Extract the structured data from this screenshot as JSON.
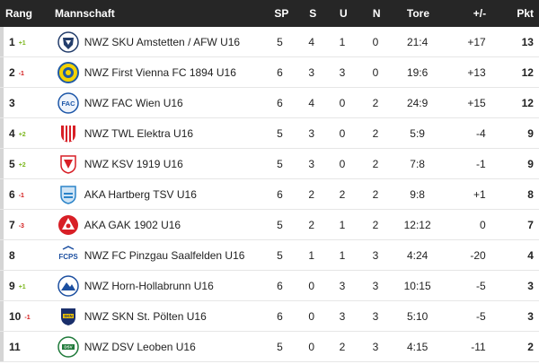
{
  "header": {
    "rang": "Rang",
    "mannschaft": "Mannschaft",
    "sp": "SP",
    "s": "S",
    "u": "U",
    "n": "N",
    "tore": "Tore",
    "diff": "+/-",
    "pkt": "Pkt"
  },
  "colors": {
    "up": "#7bb61c",
    "down": "#d21a1a",
    "header_bg": "#262626"
  },
  "rows": [
    {
      "rank": "1",
      "change": "+1",
      "dir": "up",
      "team": "NWZ SKU Amstetten / AFW U16",
      "logo": "sku-amstetten-logo",
      "sp": "5",
      "s": "4",
      "u": "1",
      "n": "0",
      "tore": "21:4",
      "diff": "+17",
      "pkt": "13"
    },
    {
      "rank": "2",
      "change": "-1",
      "dir": "down",
      "team": "NWZ First Vienna FC 1894 U16",
      "logo": "first-vienna-logo",
      "sp": "6",
      "s": "3",
      "u": "3",
      "n": "0",
      "tore": "19:6",
      "diff": "+13",
      "pkt": "12"
    },
    {
      "rank": "3",
      "change": "",
      "dir": "",
      "team": "NWZ FAC Wien U16",
      "logo": "fac-wien-logo",
      "sp": "6",
      "s": "4",
      "u": "0",
      "n": "2",
      "tore": "24:9",
      "diff": "+15",
      "pkt": "12"
    },
    {
      "rank": "4",
      "change": "+2",
      "dir": "up",
      "team": "NWZ TWL Elektra U16",
      "logo": "twl-elektra-logo",
      "sp": "5",
      "s": "3",
      "u": "0",
      "n": "2",
      "tore": "5:9",
      "diff": "-4",
      "pkt": "9"
    },
    {
      "rank": "5",
      "change": "+2",
      "dir": "up",
      "team": "NWZ KSV 1919 U16",
      "logo": "ksv-1919-logo",
      "sp": "5",
      "s": "3",
      "u": "0",
      "n": "2",
      "tore": "7:8",
      "diff": "-1",
      "pkt": "9"
    },
    {
      "rank": "6",
      "change": "-1",
      "dir": "down",
      "team": "AKA Hartberg TSV U16",
      "logo": "hartberg-logo",
      "sp": "6",
      "s": "2",
      "u": "2",
      "n": "2",
      "tore": "9:8",
      "diff": "+1",
      "pkt": "8"
    },
    {
      "rank": "7",
      "change": "-3",
      "dir": "down",
      "team": "AKA GAK 1902 U16",
      "logo": "gak-logo",
      "sp": "5",
      "s": "2",
      "u": "1",
      "n": "2",
      "tore": "12:12",
      "diff": "0",
      "pkt": "7"
    },
    {
      "rank": "8",
      "change": "",
      "dir": "",
      "team": "NWZ FC Pinzgau Saalfelden U16",
      "logo": "fcps-logo",
      "logo_text": "FCPS",
      "sp": "5",
      "s": "1",
      "u": "1",
      "n": "3",
      "tore": "4:24",
      "diff": "-20",
      "pkt": "4"
    },
    {
      "rank": "9",
      "change": "+1",
      "dir": "up",
      "team": "NWZ Horn-Hollabrunn U16",
      "logo": "horn-hollabrunn-logo",
      "sp": "6",
      "s": "0",
      "u": "3",
      "n": "3",
      "tore": "10:15",
      "diff": "-5",
      "pkt": "3"
    },
    {
      "rank": "10",
      "change": "-1",
      "dir": "down",
      "team": "NWZ SKN St. Pölten U16",
      "logo": "skn-st-poelten-logo",
      "sp": "6",
      "s": "0",
      "u": "3",
      "n": "3",
      "tore": "5:10",
      "diff": "-5",
      "pkt": "3"
    },
    {
      "rank": "11",
      "change": "",
      "dir": "",
      "team": "NWZ DSV Leoben U16",
      "logo": "dsv-leoben-logo",
      "sp": "5",
      "s": "0",
      "u": "2",
      "n": "3",
      "tore": "4:15",
      "diff": "-11",
      "pkt": "2"
    }
  ]
}
